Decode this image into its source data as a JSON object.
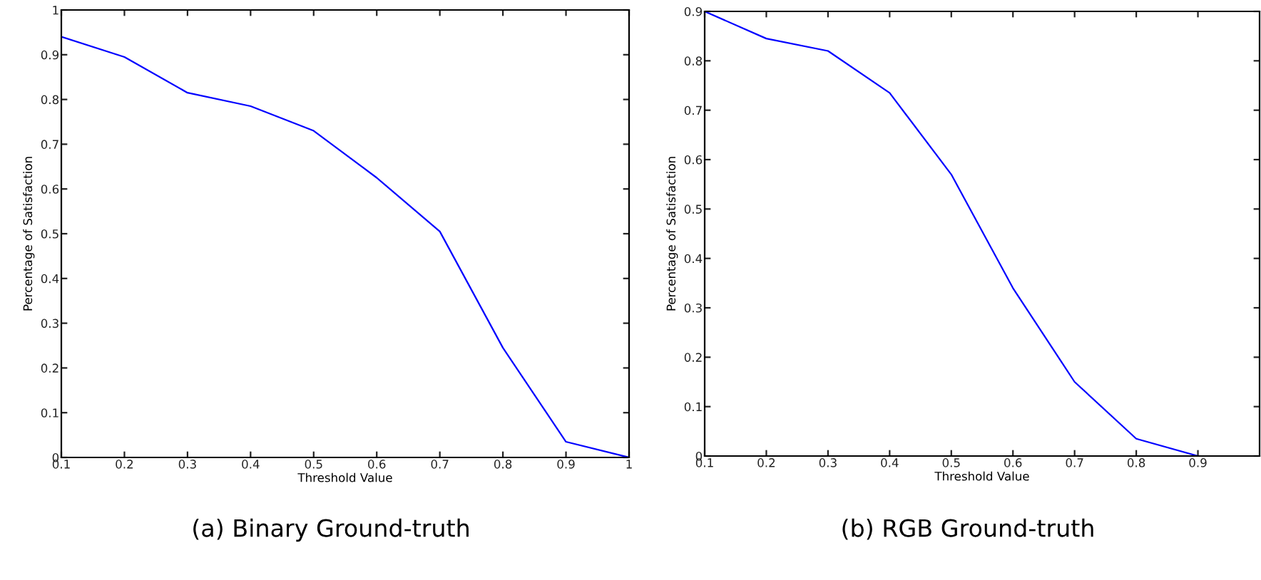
{
  "chart_data": [
    {
      "type": "line",
      "title": "(a) Binary Ground-truth",
      "xlabel": "Threshold Value",
      "ylabel": "Percentage of Satisfaction",
      "x": [
        0.1,
        0.2,
        0.3,
        0.4,
        0.5,
        0.6,
        0.7,
        0.8,
        0.9,
        1.0
      ],
      "series": [
        {
          "color": "#0000ff",
          "values": [
            0.94,
            0.895,
            0.815,
            0.785,
            0.73,
            0.625,
            0.505,
            0.245,
            0.035,
            0.0
          ]
        }
      ],
      "xlim": [
        0.1,
        1
      ],
      "xticks": [
        0.1,
        0.2,
        0.3,
        0.4,
        0.5,
        0.6,
        0.7,
        0.8,
        0.9,
        1
      ],
      "ylim": [
        0,
        1
      ],
      "yticks": [
        0,
        0.1,
        0.2,
        0.3,
        0.4,
        0.5,
        0.6,
        0.7,
        0.8,
        0.9,
        1
      ],
      "grid": false,
      "legend": false
    },
    {
      "type": "line",
      "title": "(b) RGB Ground-truth",
      "xlabel": "Threshold Value",
      "ylabel": "Percentage of Satisfaction",
      "x": [
        0.1,
        0.2,
        0.3,
        0.4,
        0.5,
        0.6,
        0.7,
        0.8,
        0.9
      ],
      "series": [
        {
          "color": "#0000ff",
          "values": [
            0.9,
            0.845,
            0.82,
            0.735,
            0.57,
            0.34,
            0.15,
            0.035,
            0.0
          ]
        }
      ],
      "xlim": [
        0.1,
        1
      ],
      "xticks": [
        0.1,
        0.2,
        0.3,
        0.4,
        0.5,
        0.6,
        0.7,
        0.8,
        0.9
      ],
      "ylim": [
        0,
        0.9
      ],
      "yticks": [
        0,
        0.1,
        0.2,
        0.3,
        0.4,
        0.5,
        0.6,
        0.7,
        0.8,
        0.9
      ],
      "grid": false,
      "legend": false
    }
  ]
}
